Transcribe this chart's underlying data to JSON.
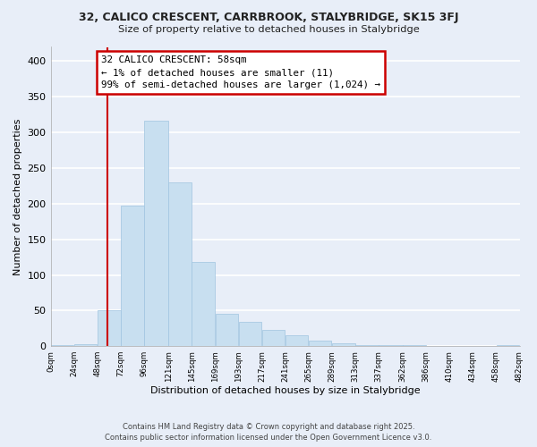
{
  "title": "32, CALICO CRESCENT, CARRBROOK, STALYBRIDGE, SK15 3FJ",
  "subtitle": "Size of property relative to detached houses in Stalybridge",
  "xlabel": "Distribution of detached houses by size in Stalybridge",
  "ylabel": "Number of detached properties",
  "bar_color": "#c8dff0",
  "bar_edge_color": "#a0c4e0",
  "bin_edges": [
    0,
    24,
    48,
    72,
    96,
    121,
    145,
    169,
    193,
    217,
    241,
    265,
    289,
    313,
    337,
    362,
    386,
    410,
    434,
    458,
    482
  ],
  "bar_heights": [
    2,
    3,
    50,
    197,
    317,
    230,
    118,
    45,
    34,
    23,
    15,
    8,
    4,
    2,
    1,
    1,
    0,
    0,
    0,
    2
  ],
  "tick_labels": [
    "0sqm",
    "24sqm",
    "48sqm",
    "72sqm",
    "96sqm",
    "121sqm",
    "145sqm",
    "169sqm",
    "193sqm",
    "217sqm",
    "241sqm",
    "265sqm",
    "289sqm",
    "313sqm",
    "337sqm",
    "362sqm",
    "386sqm",
    "410sqm",
    "434sqm",
    "458sqm",
    "482sqm"
  ],
  "ylim": [
    0,
    420
  ],
  "yticks": [
    0,
    50,
    100,
    150,
    200,
    250,
    300,
    350,
    400
  ],
  "property_line_x": 58,
  "annotation_title": "32 CALICO CRESCENT: 58sqm",
  "annotation_line1": "← 1% of detached houses are smaller (11)",
  "annotation_line2": "99% of semi-detached houses are larger (1,024) →",
  "footnote1": "Contains HM Land Registry data © Crown copyright and database right 2025.",
  "footnote2": "Contains public sector information licensed under the Open Government Licence v3.0.",
  "bg_color": "#e8eef8",
  "plot_bg_color": "#e8eef8",
  "grid_color": "#ffffff",
  "annotation_box_color": "#ffffff",
  "annotation_box_edge": "#cc0000",
  "property_line_color": "#cc0000"
}
